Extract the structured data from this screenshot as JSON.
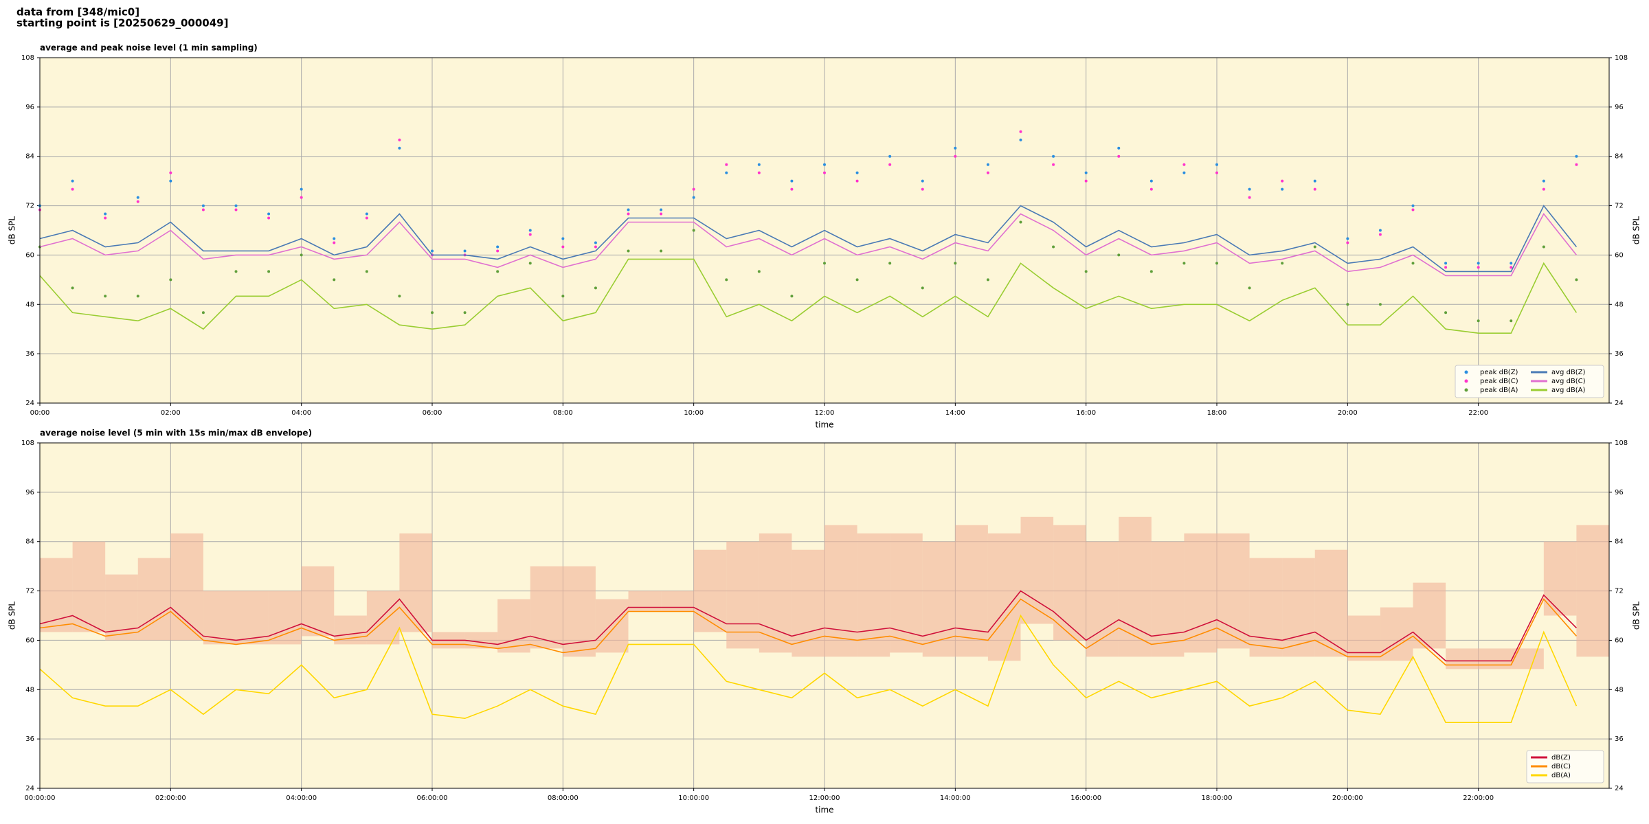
{
  "header": {
    "lines": [
      "data from [348/mic0]",
      "starting point is [20250629_000049]"
    ]
  },
  "chart_data": [
    {
      "type": "line",
      "title": "average and peak noise level (1 min sampling)",
      "x_label": "time",
      "y_label": "dB SPL",
      "background": "#fdf6d8",
      "grid": true,
      "legend": "lower right",
      "legend_columns": 2,
      "xlim": [
        0,
        24
      ],
      "ylim": [
        24,
        108
      ],
      "yticks": [
        24,
        36,
        48,
        60,
        72,
        84,
        96,
        108
      ],
      "xticks": [
        {
          "value": 0,
          "label": "00:00"
        },
        {
          "value": 2,
          "label": "02:00"
        },
        {
          "value": 4,
          "label": "04:00"
        },
        {
          "value": 6,
          "label": "06:00"
        },
        {
          "value": 8,
          "label": "08:00"
        },
        {
          "value": 10,
          "label": "10:00"
        },
        {
          "value": 12,
          "label": "12:00"
        },
        {
          "value": 14,
          "label": "14:00"
        },
        {
          "value": 16,
          "label": "16:00"
        },
        {
          "value": 18,
          "label": "18:00"
        },
        {
          "value": 20,
          "label": "20:00"
        },
        {
          "value": 22,
          "label": "22:00"
        }
      ],
      "x": [
        0,
        0.5,
        1,
        1.5,
        2,
        2.5,
        3,
        3.5,
        4,
        4.5,
        5,
        5.5,
        6,
        6.5,
        7,
        7.5,
        8,
        8.5,
        9,
        9.5,
        10,
        10.5,
        11,
        11.5,
        12,
        12.5,
        13,
        13.5,
        14,
        14.5,
        15,
        15.5,
        16,
        16.5,
        17,
        17.5,
        18,
        18.5,
        19,
        19.5,
        20,
        20.5,
        21,
        21.5,
        22,
        22.5,
        23,
        23.5
      ],
      "series": [
        {
          "name": "peak dB(Z)",
          "type": "scatter",
          "color": "#2a8ee0",
          "values": [
            72,
            78,
            70,
            74,
            78,
            72,
            72,
            70,
            76,
            64,
            70,
            86,
            61,
            61,
            62,
            66,
            64,
            63,
            71,
            71,
            74,
            80,
            82,
            78,
            82,
            80,
            84,
            78,
            86,
            82,
            88,
            84,
            80,
            86,
            78,
            80,
            82,
            76,
            76,
            78,
            64,
            66,
            72,
            58,
            58,
            58,
            78,
            84
          ]
        },
        {
          "name": "peak dB(C)",
          "type": "scatter",
          "color": "#ff33cc",
          "values": [
            71,
            76,
            69,
            73,
            80,
            71,
            71,
            69,
            74,
            63,
            69,
            88,
            60,
            60,
            61,
            65,
            62,
            62,
            70,
            70,
            76,
            82,
            80,
            76,
            80,
            78,
            82,
            76,
            84,
            80,
            90,
            82,
            78,
            84,
            76,
            82,
            80,
            74,
            78,
            76,
            63,
            65,
            71,
            57,
            57,
            57,
            76,
            82
          ]
        },
        {
          "name": "peak dB(A)",
          "type": "scatter",
          "color": "#5f9f3a",
          "values": [
            62,
            52,
            50,
            50,
            54,
            46,
            56,
            56,
            60,
            54,
            56,
            50,
            46,
            46,
            56,
            58,
            50,
            52,
            61,
            61,
            66,
            54,
            56,
            50,
            58,
            54,
            58,
            52,
            58,
            54,
            68,
            62,
            56,
            60,
            56,
            58,
            58,
            52,
            58,
            62,
            48,
            48,
            58,
            46,
            44,
            44,
            62,
            54
          ]
        },
        {
          "name": "avg dB(Z)",
          "type": "line",
          "color": "#4a7ab5",
          "values": [
            64,
            66,
            62,
            63,
            68,
            61,
            61,
            61,
            64,
            60,
            62,
            70,
            60,
            60,
            59,
            62,
            59,
            61,
            69,
            69,
            69,
            64,
            66,
            62,
            66,
            62,
            64,
            61,
            65,
            63,
            72,
            68,
            62,
            66,
            62,
            63,
            65,
            60,
            61,
            63,
            58,
            59,
            62,
            56,
            56,
            56,
            72,
            62
          ]
        },
        {
          "name": "avg dB(C)",
          "type": "line",
          "color": "#e070d0",
          "values": [
            62,
            64,
            60,
            61,
            66,
            59,
            60,
            60,
            62,
            59,
            60,
            68,
            59,
            59,
            57,
            60,
            57,
            59,
            68,
            68,
            68,
            62,
            64,
            60,
            64,
            60,
            62,
            59,
            63,
            61,
            70,
            66,
            60,
            64,
            60,
            61,
            63,
            58,
            59,
            61,
            56,
            57,
            60,
            55,
            55,
            55,
            70,
            60
          ]
        },
        {
          "name": "avg dB(A)",
          "type": "line",
          "color": "#9acd32",
          "values": [
            55,
            46,
            45,
            44,
            47,
            42,
            50,
            50,
            54,
            47,
            48,
            43,
            42,
            43,
            50,
            52,
            44,
            46,
            59,
            59,
            59,
            45,
            48,
            44,
            50,
            46,
            50,
            45,
            50,
            45,
            58,
            52,
            47,
            50,
            47,
            48,
            48,
            44,
            49,
            52,
            43,
            43,
            50,
            42,
            41,
            41,
            58,
            46
          ]
        }
      ]
    },
    {
      "type": "line",
      "title": "average noise level (5 min with 15s min/max dB envelope)",
      "x_label": "time",
      "y_label": "dB SPL",
      "background": "#fdf6d8",
      "grid": true,
      "legend": "lower right",
      "legend_columns": 1,
      "xlim": [
        0,
        24
      ],
      "ylim": [
        24,
        108
      ],
      "yticks": [
        24,
        36,
        48,
        60,
        72,
        84,
        96,
        108
      ],
      "xticks": [
        {
          "value": 0,
          "label": "00:00:00"
        },
        {
          "value": 2,
          "label": "02:00:00"
        },
        {
          "value": 4,
          "label": "04:00:00"
        },
        {
          "value": 6,
          "label": "06:00:00"
        },
        {
          "value": 8,
          "label": "08:00:00"
        },
        {
          "value": 10,
          "label": "10:00:00"
        },
        {
          "value": 12,
          "label": "12:00:00"
        },
        {
          "value": 14,
          "label": "14:00:00"
        },
        {
          "value": 16,
          "label": "16:00:00"
        },
        {
          "value": 18,
          "label": "18:00:00"
        },
        {
          "value": 20,
          "label": "20:00:00"
        },
        {
          "value": 22,
          "label": "22:00:00"
        }
      ],
      "x": [
        0,
        0.5,
        1,
        1.5,
        2,
        2.5,
        3,
        3.5,
        4,
        4.5,
        5,
        5.5,
        6,
        6.5,
        7,
        7.5,
        8,
        8.5,
        9,
        9.5,
        10,
        10.5,
        11,
        11.5,
        12,
        12.5,
        13,
        13.5,
        14,
        14.5,
        15,
        15.5,
        16,
        16.5,
        17,
        17.5,
        18,
        18.5,
        19,
        19.5,
        20,
        20.5,
        21,
        21.5,
        22,
        22.5,
        23,
        23.5
      ],
      "envelope": {
        "color": "#f2b49a",
        "upper": [
          80,
          84,
          76,
          80,
          86,
          72,
          72,
          72,
          78,
          66,
          72,
          86,
          62,
          62,
          70,
          78,
          78,
          70,
          72,
          72,
          82,
          84,
          86,
          82,
          88,
          86,
          86,
          84,
          88,
          86,
          90,
          88,
          84,
          90,
          84,
          86,
          86,
          80,
          80,
          82,
          66,
          68,
          74,
          58,
          58,
          58,
          84,
          88
        ],
        "lower": [
          62,
          62,
          60,
          60,
          60,
          59,
          59,
          59,
          61,
          59,
          59,
          62,
          58,
          58,
          57,
          58,
          56,
          57,
          67,
          67,
          62,
          58,
          57,
          56,
          56,
          56,
          57,
          56,
          56,
          55,
          64,
          60,
          56,
          56,
          56,
          57,
          58,
          56,
          56,
          56,
          55,
          55,
          58,
          53,
          53,
          53,
          66,
          56
        ]
      },
      "series": [
        {
          "name": "dB(Z)",
          "type": "line",
          "color": "#d0103a",
          "values": [
            64,
            66,
            62,
            63,
            68,
            61,
            60,
            61,
            64,
            61,
            62,
            70,
            60,
            60,
            59,
            61,
            59,
            60,
            68,
            68,
            68,
            64,
            64,
            61,
            63,
            62,
            63,
            61,
            63,
            62,
            72,
            67,
            60,
            65,
            61,
            62,
            65,
            61,
            60,
            62,
            57,
            57,
            62,
            55,
            55,
            55,
            71,
            63
          ]
        },
        {
          "name": "dB(C)",
          "type": "line",
          "color": "#ff8c00",
          "values": [
            63,
            64,
            61,
            62,
            67,
            60,
            59,
            60,
            63,
            60,
            61,
            68,
            59,
            59,
            58,
            59,
            57,
            58,
            67,
            67,
            67,
            62,
            62,
            59,
            61,
            60,
            61,
            59,
            61,
            60,
            70,
            65,
            58,
            63,
            59,
            60,
            63,
            59,
            58,
            60,
            56,
            56,
            61,
            54,
            54,
            54,
            70,
            61
          ]
        },
        {
          "name": "dB(A)",
          "type": "line",
          "color": "#ffd700",
          "values": [
            53,
            46,
            44,
            44,
            48,
            42,
            48,
            47,
            54,
            46,
            48,
            63,
            42,
            41,
            44,
            48,
            44,
            42,
            59,
            59,
            59,
            50,
            48,
            46,
            52,
            46,
            48,
            44,
            48,
            44,
            66,
            54,
            46,
            50,
            46,
            48,
            50,
            44,
            46,
            50,
            43,
            42,
            56,
            40,
            40,
            40,
            62,
            44
          ]
        }
      ]
    }
  ]
}
